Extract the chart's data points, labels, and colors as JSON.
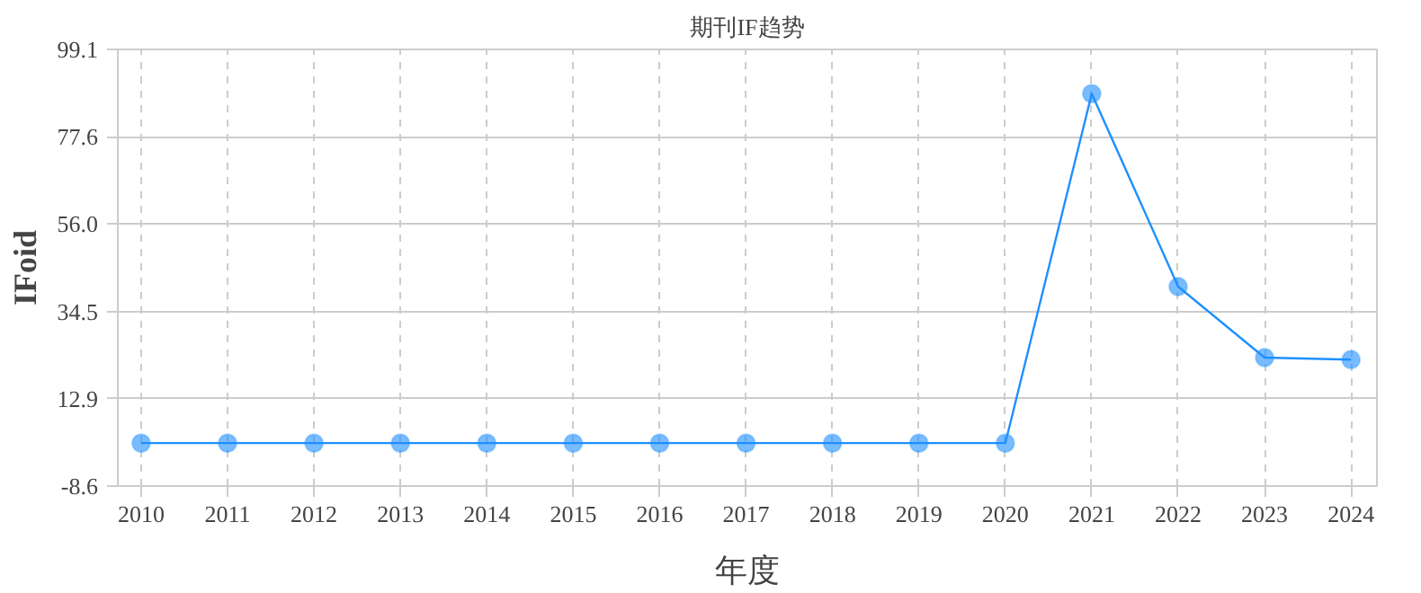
{
  "chart_data": {
    "type": "line",
    "title": "期刊IF趋势",
    "xlabel": "年度",
    "ylabel": "IFoid",
    "categories": [
      "2010",
      "2011",
      "2012",
      "2013",
      "2014",
      "2015",
      "2016",
      "2017",
      "2018",
      "2019",
      "2020",
      "2021",
      "2022",
      "2023",
      "2024"
    ],
    "series": [
      {
        "color": "#1e90ff",
        "values": [
          2.0,
          2.0,
          2.0,
          2.0,
          2.0,
          2.0,
          2.0,
          2.0,
          2.0,
          2.0,
          2.0,
          88.2,
          40.6,
          23.1,
          22.6
        ]
      }
    ],
    "ylim": [
      -8.6,
      99.1
    ],
    "yticks": [
      -8.6,
      12.9,
      34.5,
      {
        "value": 56,
        "label": "56.0"
      },
      77.6,
      99.1
    ],
    "grid": true,
    "marker": "circle",
    "line_style": "solid"
  }
}
